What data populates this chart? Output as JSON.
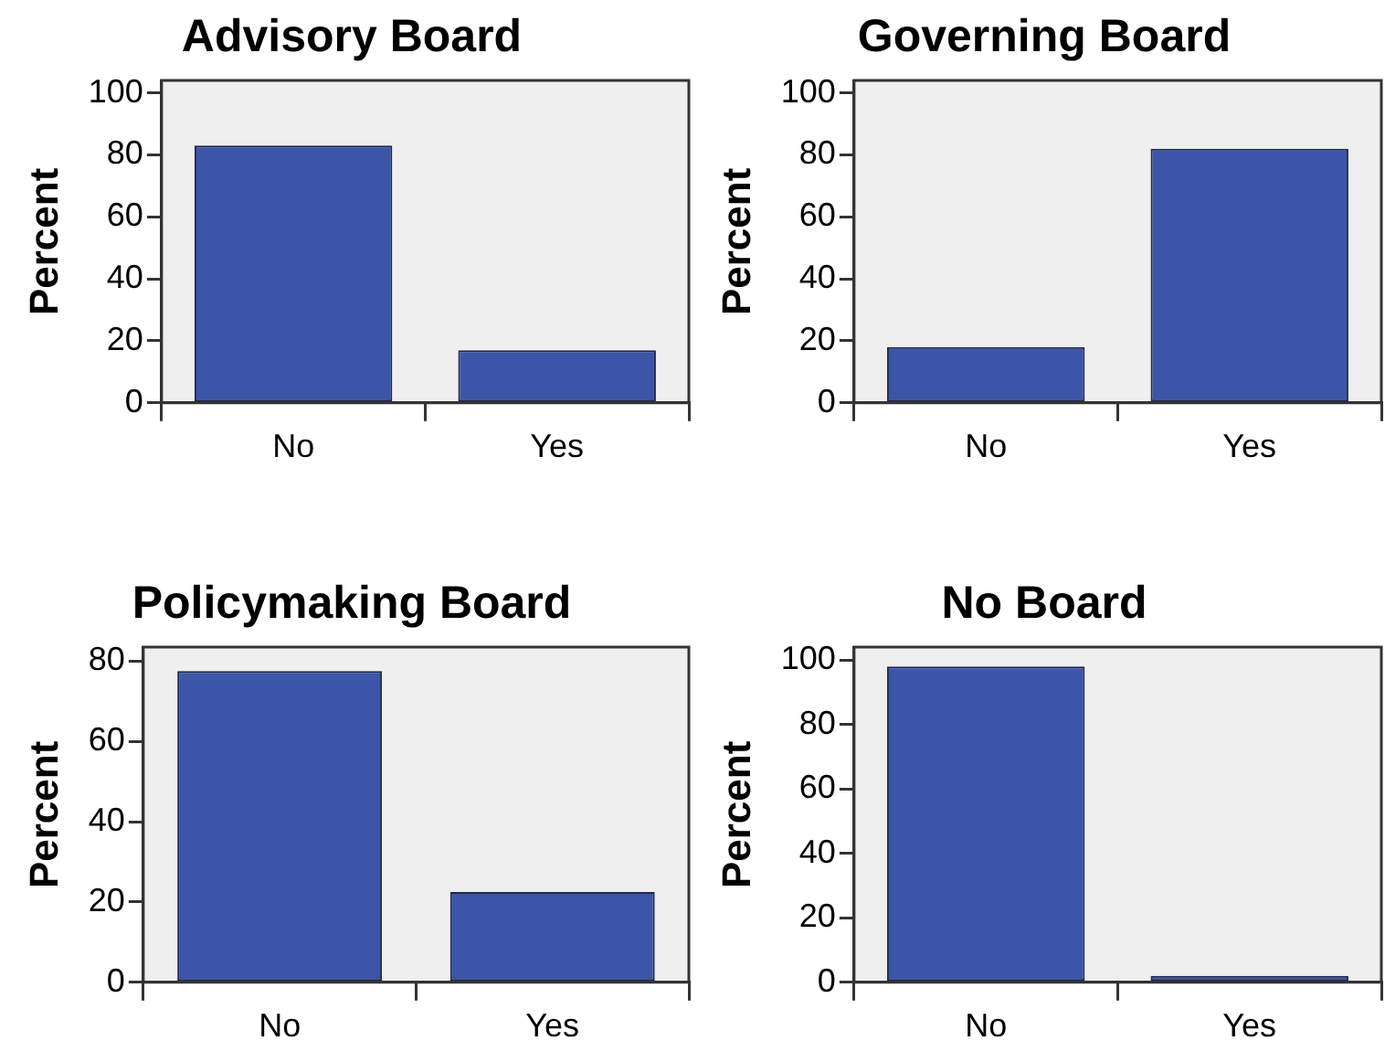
{
  "chart_data": [
    {
      "type": "bar",
      "title": "Advisory Board",
      "ylabel": "Percent",
      "categories": [
        "No",
        "Yes"
      ],
      "values": [
        83,
        17
      ],
      "color": "#3c55a8",
      "ylim": [
        0,
        104
      ],
      "yticks": [
        0,
        20,
        40,
        60,
        80,
        100
      ]
    },
    {
      "type": "bar",
      "title": "Governing Board",
      "ylabel": "Percent",
      "categories": [
        "No",
        "Yes"
      ],
      "values": [
        18,
        82
      ],
      "color": "#3c55a8",
      "ylim": [
        0,
        104
      ],
      "yticks": [
        0,
        20,
        40,
        60,
        80,
        100
      ]
    },
    {
      "type": "bar",
      "title": "Policymaking Board",
      "ylabel": "Percent",
      "categories": [
        "No",
        "Yes"
      ],
      "values": [
        77.5,
        22.5
      ],
      "color": "#3c55a8",
      "ylim": [
        0,
        83.5
      ],
      "yticks": [
        0,
        20,
        40,
        60,
        80
      ]
    },
    {
      "type": "bar",
      "title": "No Board",
      "ylabel": "Percent",
      "categories": [
        "No",
        "Yes"
      ],
      "values": [
        98,
        2
      ],
      "color": "#3c55a8",
      "ylim": [
        0,
        104
      ],
      "yticks": [
        0,
        20,
        40,
        60,
        80,
        100
      ]
    }
  ]
}
